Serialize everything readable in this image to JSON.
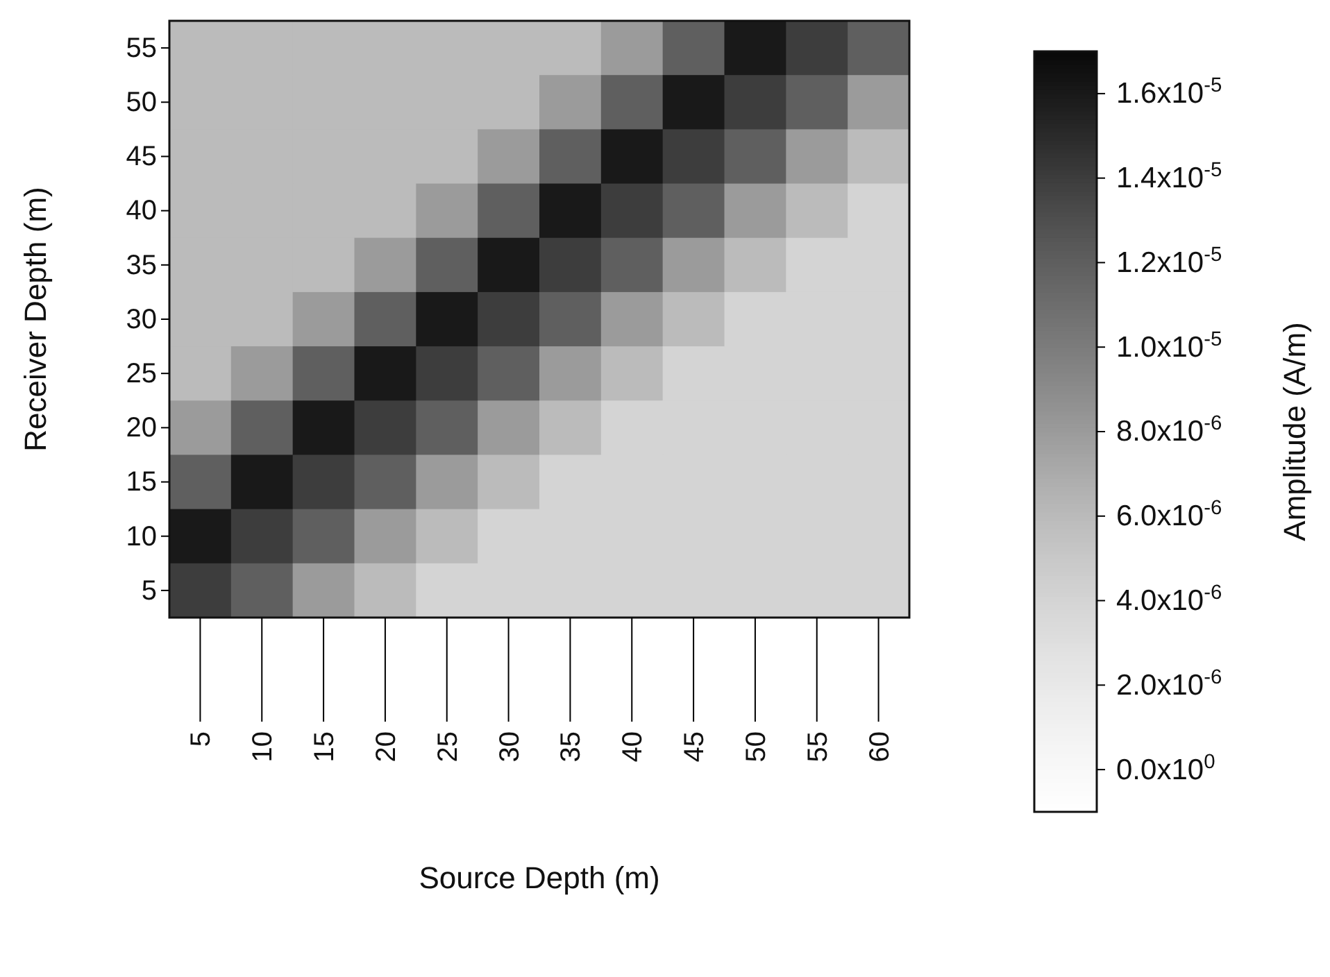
{
  "chart_data": {
    "type": "heatmap",
    "xlabel": "Source Depth (m)",
    "ylabel": "Receiver  Depth (m)",
    "clabel": "Amplitude (A/m)",
    "categories": [
      "5",
      "10",
      "15",
      "20",
      "25",
      "30",
      "35",
      "40",
      "45",
      "50",
      "55",
      "60"
    ],
    "y_categories": [
      "55",
      "50",
      "45",
      "40",
      "35",
      "30",
      "25",
      "20",
      "15",
      "10",
      "5"
    ],
    "cells": [
      [
        6e-06,
        6e-06,
        6e-06,
        6e-06,
        6e-06,
        6e-06,
        6e-06,
        8e-06,
        1.2e-05,
        1.6e-05,
        1.4e-05,
        1.2e-05
      ],
      [
        6e-06,
        6e-06,
        6e-06,
        6e-06,
        6e-06,
        6e-06,
        8e-06,
        1.2e-05,
        1.6e-05,
        1.4e-05,
        1.2e-05,
        8e-06
      ],
      [
        6e-06,
        6e-06,
        6e-06,
        6e-06,
        6e-06,
        8e-06,
        1.2e-05,
        1.6e-05,
        1.4e-05,
        1.2e-05,
        8e-06,
        6e-06
      ],
      [
        6e-06,
        6e-06,
        6e-06,
        6e-06,
        8e-06,
        1.2e-05,
        1.6e-05,
        1.4e-05,
        1.2e-05,
        8e-06,
        6e-06,
        4e-06
      ],
      [
        6e-06,
        6e-06,
        6e-06,
        8e-06,
        1.2e-05,
        1.6e-05,
        1.4e-05,
        1.2e-05,
        8e-06,
        6e-06,
        4e-06,
        4e-06
      ],
      [
        6e-06,
        6e-06,
        8e-06,
        1.2e-05,
        1.6e-05,
        1.4e-05,
        1.2e-05,
        8e-06,
        6e-06,
        4e-06,
        4e-06,
        4e-06
      ],
      [
        6e-06,
        8e-06,
        1.2e-05,
        1.6e-05,
        1.4e-05,
        1.2e-05,
        8e-06,
        6e-06,
        4e-06,
        4e-06,
        4e-06,
        4e-06
      ],
      [
        8e-06,
        1.2e-05,
        1.6e-05,
        1.4e-05,
        1.2e-05,
        8e-06,
        6e-06,
        4e-06,
        4e-06,
        4e-06,
        4e-06,
        4e-06
      ],
      [
        1.2e-05,
        1.6e-05,
        1.4e-05,
        1.2e-05,
        8e-06,
        6e-06,
        4e-06,
        4e-06,
        4e-06,
        4e-06,
        4e-06,
        4e-06
      ],
      [
        1.6e-05,
        1.4e-05,
        1.2e-05,
        8e-06,
        6e-06,
        4e-06,
        4e-06,
        4e-06,
        4e-06,
        4e-06,
        4e-06,
        4e-06
      ],
      [
        1.4e-05,
        1.2e-05,
        8e-06,
        6e-06,
        4e-06,
        4e-06,
        4e-06,
        4e-06,
        4e-06,
        4e-06,
        4e-06,
        4e-06
      ]
    ],
    "clim": [
      -1e-06,
      1.7e-05
    ],
    "cticks": [
      {
        "value": 0,
        "label": "0.0x10$^{0}$"
      },
      {
        "value": 2e-06,
        "label": "2.0x10$^{-6}$"
      },
      {
        "value": 4e-06,
        "label": "4.0x10$^{-6}$"
      },
      {
        "value": 6e-06,
        "label": "6.0x10$^{-6}$"
      },
      {
        "value": 8e-06,
        "label": "8.0x10$^{-6}$"
      },
      {
        "value": 1e-05,
        "label": "1.0x10$^{-5}$"
      },
      {
        "value": 1.2e-05,
        "label": "1.2x10$^{-5}$"
      },
      {
        "value": 1.4e-05,
        "label": "1.4x10$^{-5}$"
      },
      {
        "value": 1.6e-05,
        "label": "1.6x10$^{-5}$"
      }
    ]
  }
}
